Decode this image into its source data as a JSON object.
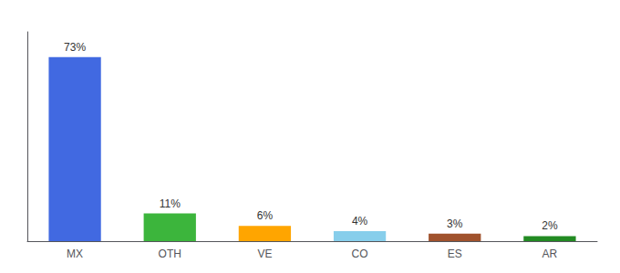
{
  "chart_data": {
    "type": "bar",
    "categories": [
      "MX",
      "OTH",
      "VE",
      "CO",
      "ES",
      "AR"
    ],
    "values": [
      73,
      11,
      6,
      4,
      3,
      2
    ],
    "value_labels": [
      "73%",
      "11%",
      "6%",
      "4%",
      "3%",
      "2%"
    ],
    "colors": [
      "#4169E1",
      "#3CB53C",
      "#FFA500",
      "#87CEEB",
      "#A0522D",
      "#228B22"
    ],
    "ylim": [
      0,
      83
    ],
    "data_labels": true,
    "tick_labels": "x",
    "grid": false
  }
}
